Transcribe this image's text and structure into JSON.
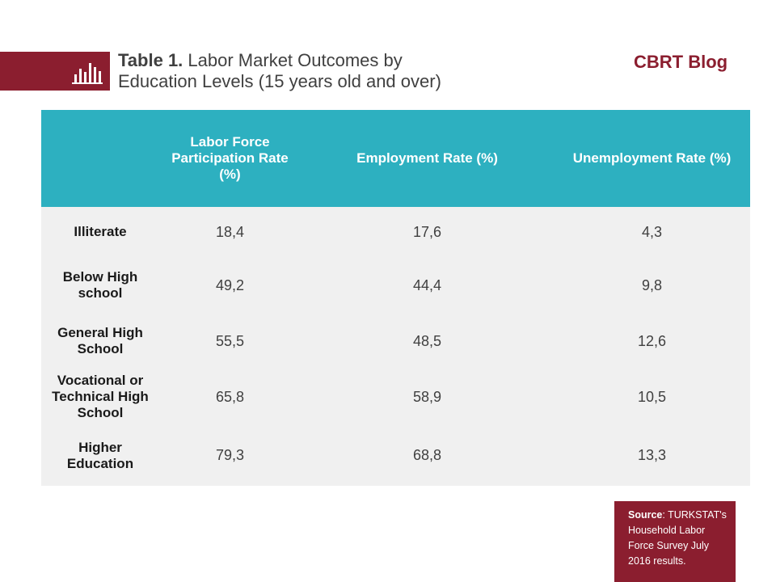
{
  "header": {
    "title_prefix": "Table 1.",
    "title_line1": "Labor Market Outcomes by",
    "title_line2": "Education Levels (15 years old and over)",
    "brand": "CBRT Blog",
    "band_icon": "bar-chart-icon",
    "accent_color": "#8b1e2f"
  },
  "table": {
    "header_color": "#2db0c0",
    "columns": [
      "",
      "Labor Force Participation Rate (%)",
      "Employment Rate (%)",
      "Unemployment Rate (%)"
    ],
    "rows": [
      {
        "label": "Illiterate",
        "lfpr": "18,4",
        "employment": "17,6",
        "unemployment": "4,3"
      },
      {
        "label": "Below High school",
        "lfpr": "49,2",
        "employment": "44,4",
        "unemployment": "9,8"
      },
      {
        "label": "General High School",
        "lfpr": "55,5",
        "employment": "48,5",
        "unemployment": "12,6"
      },
      {
        "label": "Vocational or Technical High School",
        "lfpr": "65,8",
        "employment": "58,9",
        "unemployment": "10,5"
      },
      {
        "label": "Higher Education",
        "lfpr": "79,3",
        "employment": "68,8",
        "unemployment": "13,3"
      }
    ]
  },
  "source": {
    "label": "Source",
    "text": ": TURKSTAT's Household Labor Force Survey July 2016 results."
  }
}
